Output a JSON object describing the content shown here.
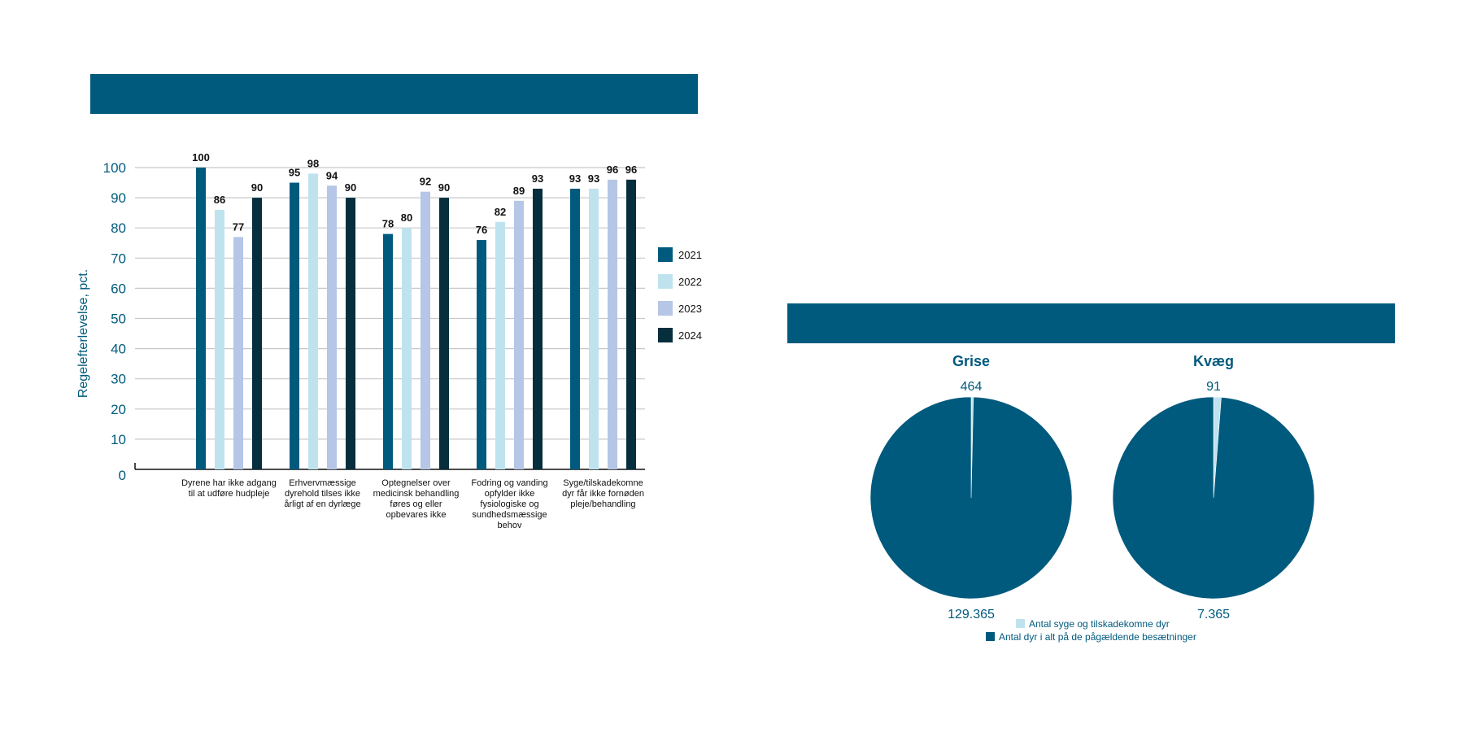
{
  "colors": {
    "banner": "#005a7d",
    "grid": "#c8c8c8",
    "axis_text": "#005a7d",
    "s2021": "#005a7d",
    "s2022": "#bfe3ee",
    "s2023": "#b5c6e6",
    "s2024": "#062e3d",
    "pie_small": "#bfe3ee",
    "pie_large": "#005a7d"
  },
  "chart_data": [
    {
      "type": "bar",
      "ylabel": "Regelefterlevelse, pct.",
      "ylim": [
        0,
        100
      ],
      "yticks": [
        0,
        10,
        20,
        30,
        40,
        50,
        60,
        70,
        80,
        90,
        100
      ],
      "grid": true,
      "legend_position": "right",
      "categories": [
        [
          "Dyrene har ikke adgang",
          "til at udføre hudpleje"
        ],
        [
          "Erhvervmæssige",
          "dyrehold tilses ikke",
          "årligt af en dyrlæge"
        ],
        [
          "Optegnelser over",
          "medicinsk behandling",
          "føres og eller",
          "opbevares ikke"
        ],
        [
          "Fodring og vanding",
          "opfylder ikke",
          "fysiologiske og",
          "sundhedsmæssige",
          "behov"
        ],
        [
          "Syge/tilskadekomne",
          "dyr får ikke fornøden",
          "pleje/behandling"
        ]
      ],
      "series": [
        {
          "name": "2021",
          "values": [
            100,
            95,
            78,
            76,
            93
          ]
        },
        {
          "name": "2022",
          "values": [
            86,
            98,
            80,
            82,
            93
          ]
        },
        {
          "name": "2023",
          "values": [
            77,
            94,
            92,
            89,
            96
          ]
        },
        {
          "name": "2024",
          "values": [
            90,
            90,
            90,
            93,
            96
          ]
        }
      ]
    },
    {
      "type": "pie",
      "title": "Grise",
      "slices": [
        {
          "label": "Antal syge og tilskadekomne dyr",
          "value": 464,
          "display": "464"
        },
        {
          "label": "Antal dyr i alt på de pågældende besætninger",
          "value": 129365,
          "display": "129.365"
        }
      ]
    },
    {
      "type": "pie",
      "title": "Kvæg",
      "slices": [
        {
          "label": "Antal syge og tilskadekomne dyr",
          "value": 91,
          "display": "91"
        },
        {
          "label": "Antal dyr i alt på de pågældende besætninger",
          "value": 7365,
          "display": "7.365"
        }
      ]
    }
  ],
  "pie_legend": [
    "Antal syge og tilskadekomne dyr",
    "Antal dyr i alt på de pågældende besætninger"
  ]
}
